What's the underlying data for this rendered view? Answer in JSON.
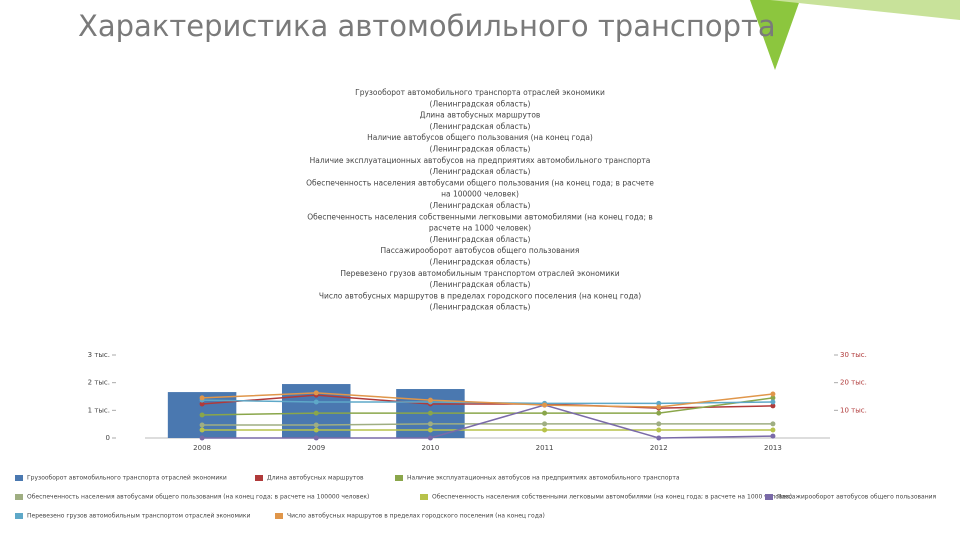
{
  "title": "Характеристика автомобильного транспорта",
  "notes": [
    "Грузооборот автомобильного транспорта отраслей экономики",
    "(Ленинградская область)",
    "Длина автобусных маршрутов",
    "(Ленинградская область)",
    "Наличие автобусов общего пользования (на конец года)",
    "(Ленинградская область)",
    "Наличие эксплуатационных автобусов на предприятиях автомобильного транспорта",
    "(Ленинградская область)",
    "Обеспеченность населения автобусами общего пользования (на конец года; в расчете",
    "на 100000 человек)",
    "(Ленинградская область)",
    "Обеспеченность населения собственными легковыми автомобилями (на конец года; в",
    "расчете на 1000 человек)",
    "(Ленинградская область)",
    "Пассажирооборот автобусов общего пользования",
    "(Ленинградская область)",
    "Перевезено грузов автомобильным транспортом отраслей экономики",
    "(Ленинградская область)",
    "Число автобусных маршрутов в пределах городского поселения (на конец года)",
    "(Ленинградская область)"
  ],
  "chart_data": {
    "type": "bar",
    "categories": [
      "2008",
      "2009",
      "2010",
      "2011",
      "2012",
      "2013"
    ],
    "ylim": [
      0,
      3000
    ],
    "yticks": [
      0,
      {
        "value": 1000,
        "label": "1 тыс."
      },
      {
        "value": 2000,
        "label": "2 тыс."
      },
      {
        "value": 3000,
        "label": "3 тыс."
      }
    ],
    "y2lim": [
      0,
      30000
    ],
    "y2ticks": [
      {
        "value": 10000,
        "label": "10 тыс."
      },
      {
        "value": 20000,
        "label": "20 тыс."
      },
      {
        "value": 30000,
        "label": "30 тыс."
      }
    ],
    "series": [
      {
        "name": "Грузооборот автомобильного транспорта отраслей экономики",
        "type": "bar",
        "color": "#4a78b0",
        "values": [
          1660,
          1950,
          1770,
          null,
          null,
          null
        ]
      },
      {
        "name": "Длина автобусных маршрутов",
        "type": "line",
        "color": "#b03a3a",
        "values": [
          1230,
          1550,
          1230,
          1230,
          1080,
          1160
        ]
      },
      {
        "name": "Наличие эксплуатационных автобусов на предприятиях автомобильного транспорта",
        "type": "line",
        "color": "#8aa64a",
        "values": [
          830,
          900,
          900,
          900,
          900,
          1450
        ]
      },
      {
        "name": "Обеспеченность населения автобусами общего пользования (на конец года; в расчете на 100000 человек)",
        "type": "line",
        "color": "#9fae82",
        "values": [
          470,
          470,
          510,
          510,
          510,
          510
        ]
      },
      {
        "name": "Обеспеченность населения собственными легковыми автомобилями (на конец года; в расчете на 1000 человек)",
        "type": "line",
        "color": "#b7c24a",
        "values": [
          290,
          290,
          290,
          290,
          290,
          290
        ]
      },
      {
        "name": "Пассажирооборот автобусов общего пользования",
        "type": "line",
        "color": "#7a6aa8",
        "values": [
          0,
          0,
          0,
          1190,
          0,
          70
        ]
      },
      {
        "name": "Перевезено грузов автомобильным транспортом отраслей экономики",
        "type": "line",
        "color": "#5ea8c8",
        "values": [
          1370,
          1300,
          1300,
          1250,
          1250,
          1300
        ]
      },
      {
        "name": "Число автобусных маршрутов в пределах городского поселения (на конец года)",
        "type": "line",
        "color": "#e0964a",
        "values": [
          1450,
          1630,
          1370,
          1190,
          1120,
          1590
        ]
      }
    ]
  }
}
